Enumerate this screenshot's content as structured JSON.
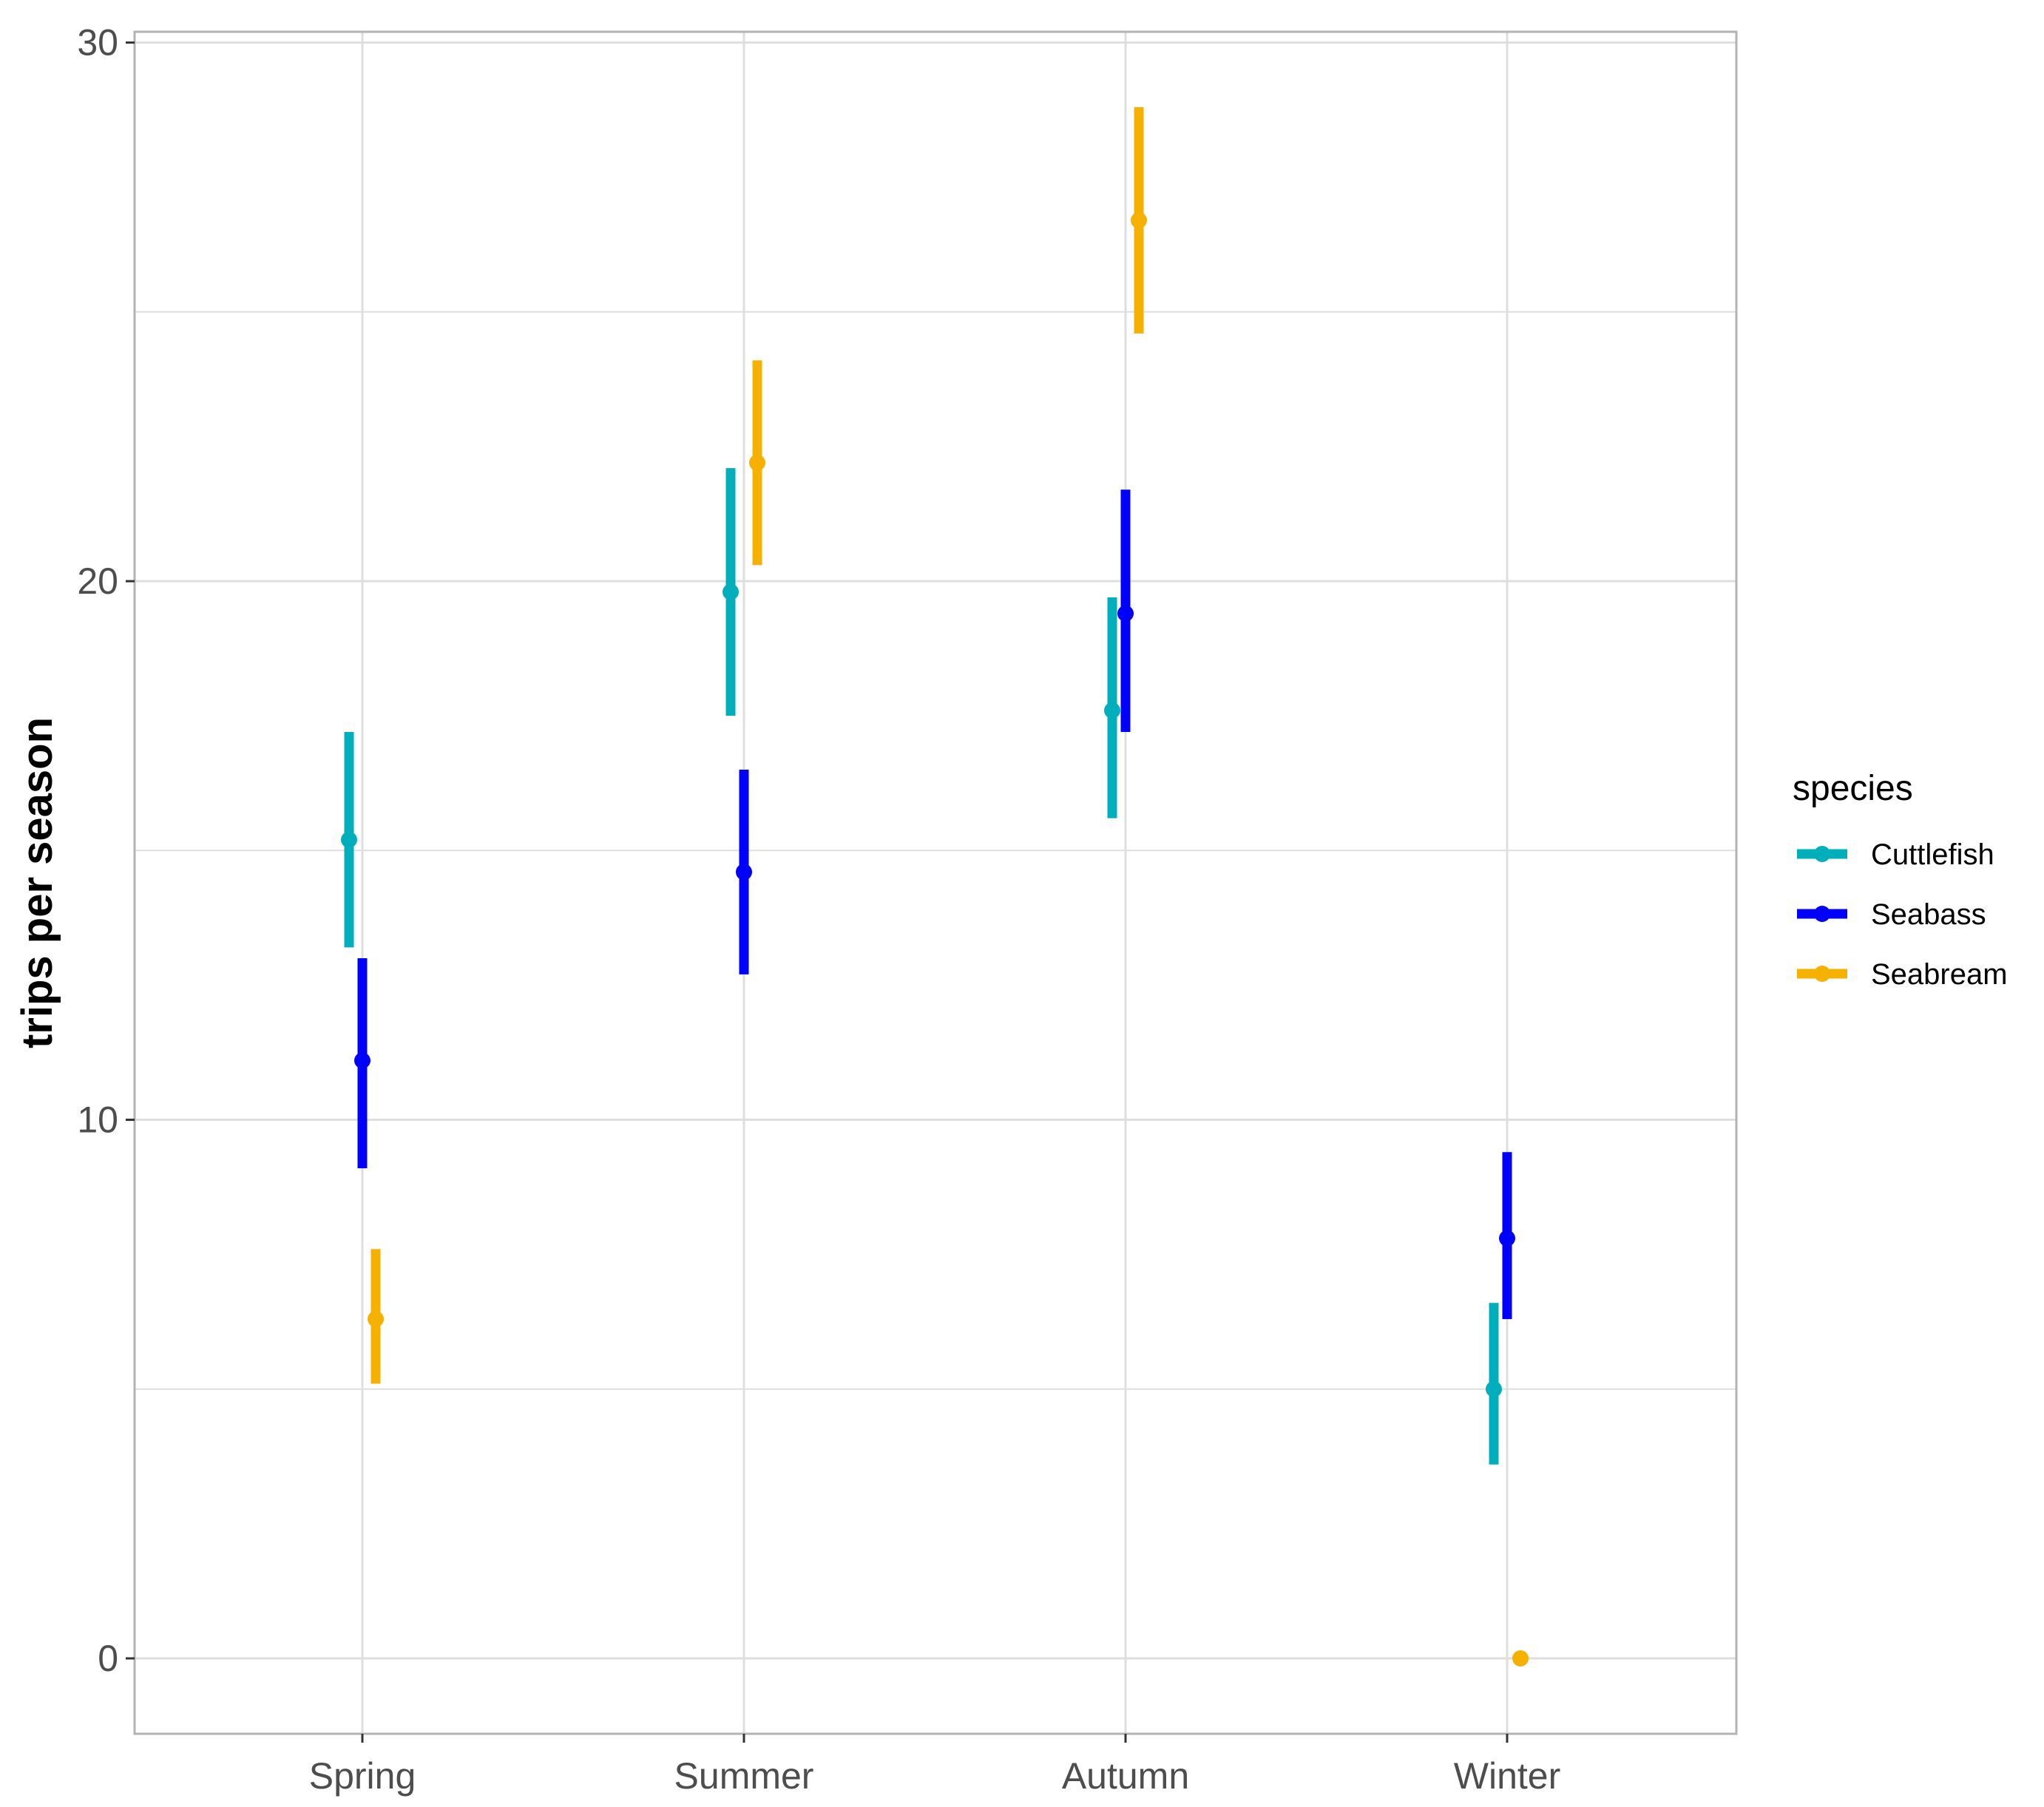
{
  "chart_data": {
    "type": "errorbar",
    "title": "",
    "xlabel": "",
    "ylabel": "trips per season",
    "categories": [
      "Spring",
      "Summer",
      "Autumn",
      "Winter"
    ],
    "ylim": [
      -1.4,
      30.2
    ],
    "yticks": [
      0,
      10,
      20,
      30
    ],
    "grid": true,
    "legend": {
      "title": "species",
      "position": "right"
    },
    "series": [
      {
        "name": "Cuttlefish",
        "color": "#00AFBB",
        "values": [
          15.2,
          19.8,
          17.6,
          5.0
        ],
        "lower": [
          13.2,
          17.5,
          15.6,
          3.6
        ],
        "upper": [
          17.2,
          22.1,
          19.7,
          6.6
        ]
      },
      {
        "name": "Seabass",
        "color": "#0000FF",
        "values": [
          11.1,
          14.6,
          19.4,
          7.8
        ],
        "lower": [
          9.1,
          12.7,
          17.2,
          6.3
        ],
        "upper": [
          13.0,
          16.5,
          21.7,
          9.4
        ]
      },
      {
        "name": "Seabream",
        "color": "#F5B000",
        "values": [
          6.3,
          22.2,
          26.7,
          0.0
        ],
        "lower": [
          5.1,
          20.3,
          24.6,
          0.0
        ],
        "upper": [
          7.6,
          24.1,
          28.8,
          0.0
        ]
      }
    ]
  }
}
